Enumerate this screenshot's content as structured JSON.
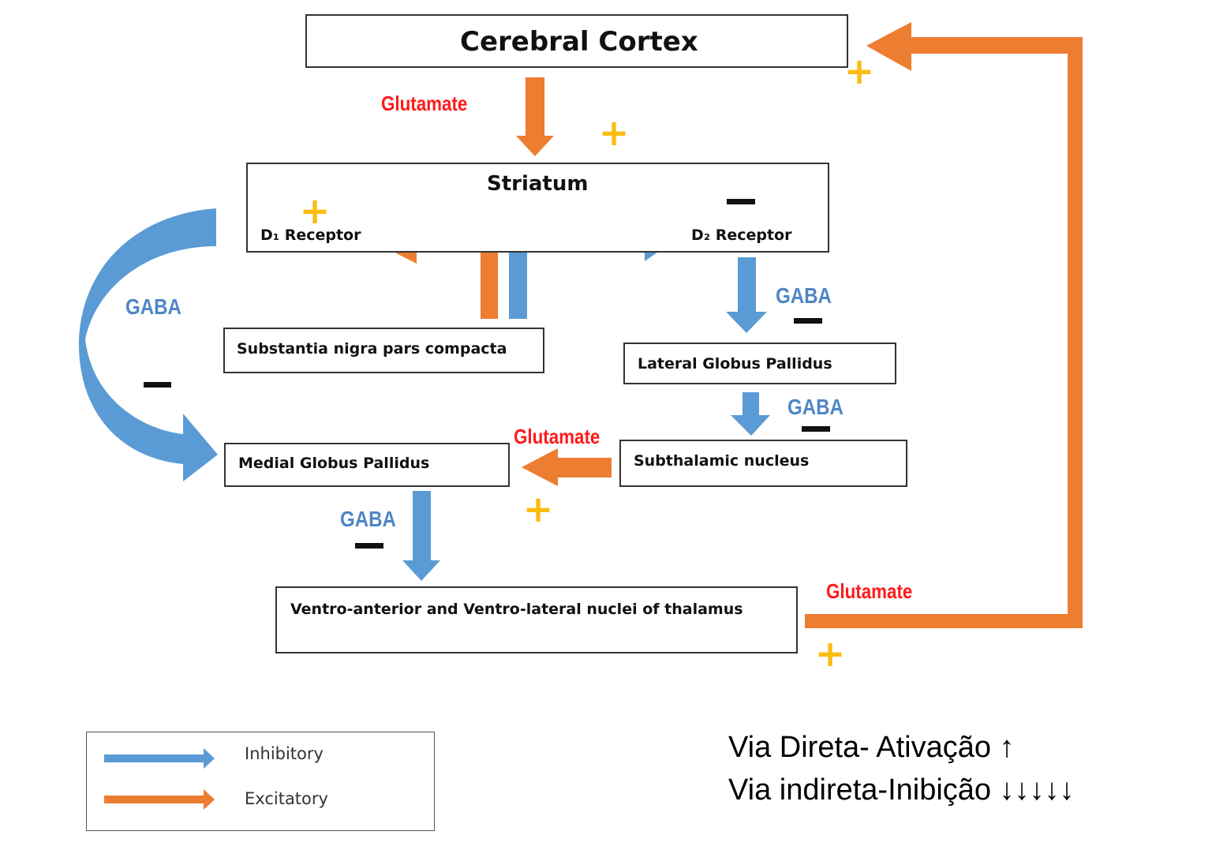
{
  "colors": {
    "inhibitory": "#5b9bd5",
    "excitatory": "#ed7d31",
    "plus": "#fbbc12",
    "glutamate_label": "#ff1a1a",
    "gaba_label": "#4f86c6"
  },
  "nodes": {
    "cortex": "Cerebral Cortex",
    "striatum": "Striatum",
    "d1": "D₁ Receptor",
    "d2": "D₂ Receptor",
    "snc": "Substantia nigra pars compacta",
    "lgp": "Lateral Globus Pallidus",
    "stn": "Subthalamic nucleus",
    "mgp": "Medial Globus Pallidus",
    "thalamus": "Ventro-anterior and Ventro-lateral nuclei of thalamus"
  },
  "labels": {
    "glutamate": "Glutamate",
    "gaba": "GABA",
    "plus": "+"
  },
  "legend": {
    "inhibitory": "Inhibitory",
    "excitatory": "Excitatory"
  },
  "notes": {
    "line1": "Via Direta- Ativação ↑",
    "line2": "Via indireta-Inibição ↓↓↓↓↓"
  }
}
